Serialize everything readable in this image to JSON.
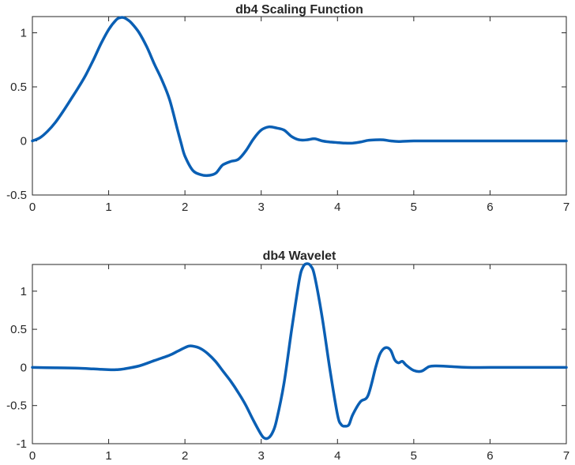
{
  "chart_data": [
    {
      "type": "line",
      "title": "db4 Scaling Function",
      "xlabel": "",
      "ylabel": "",
      "xlim": [
        0,
        7
      ],
      "ylim": [
        -0.5,
        1.15
      ],
      "xticks": [
        0,
        1,
        2,
        3,
        4,
        5,
        6,
        7
      ],
      "xtick_labels": [
        "0",
        "1",
        "2",
        "3",
        "4",
        "5",
        "6",
        "7"
      ],
      "yticks": [
        -0.5,
        0,
        0.5,
        1
      ],
      "ytick_labels": [
        "-0.5",
        "0",
        "0.5",
        "1"
      ],
      "grid": false,
      "line_color": "#0a5fb4",
      "series": [
        {
          "x": [
            0,
            0.1,
            0.2,
            0.3,
            0.4,
            0.5,
            0.6,
            0.7,
            0.8,
            0.9,
            1.0,
            1.1,
            1.15,
            1.2,
            1.25,
            1.3,
            1.4,
            1.5,
            1.6,
            1.7,
            1.8,
            1.9,
            1.95,
            2.0,
            2.1,
            2.2,
            2.3,
            2.4,
            2.45,
            2.5,
            2.6,
            2.7,
            2.8,
            2.9,
            3.0,
            3.1,
            3.2,
            3.3,
            3.4,
            3.5,
            3.6,
            3.7,
            3.8,
            3.9,
            4.0,
            4.1,
            4.2,
            4.3,
            4.4,
            4.5,
            4.6,
            4.7,
            4.8,
            5.0,
            5.2,
            5.5,
            6.0,
            6.5,
            7.0
          ],
          "y": [
            0,
            0.03,
            0.09,
            0.17,
            0.27,
            0.38,
            0.49,
            0.61,
            0.75,
            0.9,
            1.03,
            1.12,
            1.14,
            1.14,
            1.12,
            1.09,
            1.0,
            0.87,
            0.71,
            0.56,
            0.38,
            0.11,
            -0.02,
            -0.14,
            -0.27,
            -0.31,
            -0.32,
            -0.3,
            -0.26,
            -0.22,
            -0.19,
            -0.17,
            -0.09,
            0.02,
            0.1,
            0.13,
            0.12,
            0.1,
            0.04,
            0.01,
            0.01,
            0.02,
            0.0,
            -0.01,
            -0.015,
            -0.02,
            -0.02,
            -0.01,
            0.005,
            0.01,
            0.01,
            0.0,
            -0.005,
            0.0,
            0.0,
            0.0,
            0.0,
            0.0,
            0.0
          ]
        }
      ]
    },
    {
      "type": "line",
      "title": "db4 Wavelet",
      "xlabel": "",
      "ylabel": "",
      "xlim": [
        0,
        7
      ],
      "ylim": [
        -1.0,
        1.35
      ],
      "xticks": [
        0,
        1,
        2,
        3,
        4,
        5,
        6,
        7
      ],
      "xtick_labels": [
        "0",
        "1",
        "2",
        "3",
        "4",
        "5",
        "6",
        "7"
      ],
      "yticks": [
        -1,
        -0.5,
        0,
        0.5,
        1
      ],
      "ytick_labels": [
        "-1",
        "-0.5",
        "0",
        "0.5",
        "1"
      ],
      "grid": false,
      "line_color": "#0a5fb4",
      "series": [
        {
          "x": [
            0,
            0.3,
            0.6,
            0.8,
            1.0,
            1.1,
            1.2,
            1.4,
            1.6,
            1.8,
            1.9,
            2.0,
            2.05,
            2.1,
            2.2,
            2.3,
            2.4,
            2.5,
            2.6,
            2.7,
            2.8,
            2.9,
            3.0,
            3.05,
            3.1,
            3.15,
            3.2,
            3.3,
            3.4,
            3.5,
            3.55,
            3.6,
            3.65,
            3.7,
            3.8,
            3.9,
            4.0,
            4.05,
            4.1,
            4.15,
            4.2,
            4.3,
            4.4,
            4.5,
            4.55,
            4.6,
            4.65,
            4.7,
            4.75,
            4.8,
            4.85,
            4.9,
            5.0,
            5.1,
            5.2,
            5.3,
            5.5,
            5.7,
            6.0,
            6.5,
            7.0
          ],
          "y": [
            0.0,
            -0.005,
            -0.01,
            -0.02,
            -0.03,
            -0.03,
            -0.02,
            0.02,
            0.09,
            0.16,
            0.21,
            0.26,
            0.28,
            0.28,
            0.25,
            0.18,
            0.08,
            -0.05,
            -0.18,
            -0.33,
            -0.5,
            -0.7,
            -0.88,
            -0.93,
            -0.92,
            -0.85,
            -0.7,
            -0.2,
            0.5,
            1.15,
            1.32,
            1.36,
            1.33,
            1.2,
            0.65,
            -0.02,
            -0.62,
            -0.75,
            -0.77,
            -0.75,
            -0.62,
            -0.45,
            -0.37,
            0.0,
            0.16,
            0.24,
            0.26,
            0.22,
            0.1,
            0.06,
            0.08,
            0.03,
            -0.04,
            -0.05,
            0.01,
            0.02,
            0.01,
            0.0,
            0.0,
            0.0,
            0.0
          ]
        }
      ]
    }
  ]
}
